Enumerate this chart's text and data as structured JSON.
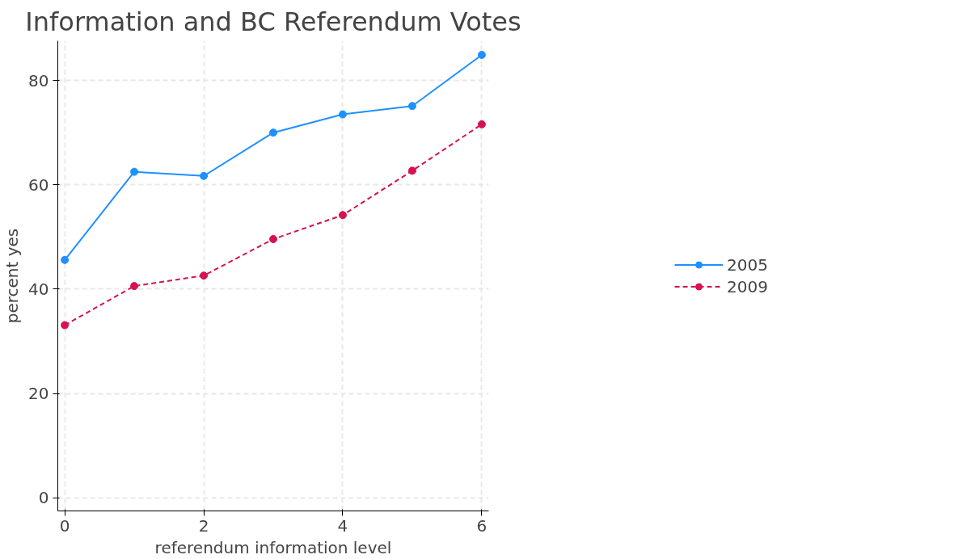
{
  "chart_data": {
    "type": "line",
    "title": "Information and BC Referendum Votes",
    "xlabel": "referendum information level",
    "ylabel": "percent yes",
    "x": [
      0,
      1,
      2,
      3,
      4,
      5,
      6
    ],
    "series": [
      {
        "name": "2005",
        "color": "#1e90ff",
        "values": [
          45.6,
          62.5,
          61.7,
          70.0,
          73.5,
          75.1,
          84.9
        ],
        "line_style": "solid"
      },
      {
        "name": "2009",
        "color": "#d6124f",
        "values": [
          33.1,
          40.6,
          42.6,
          49.6,
          54.2,
          62.7,
          71.6
        ],
        "line_style": "dashed"
      }
    ],
    "xlim": [
      -0.1,
      6.1
    ],
    "ylim": [
      -2.5,
      87.6
    ],
    "xticks": [
      0,
      2,
      4,
      6
    ],
    "yticks": [
      0,
      20,
      40,
      60,
      80
    ],
    "grid": true,
    "legend": "right",
    "marker": "circle"
  }
}
